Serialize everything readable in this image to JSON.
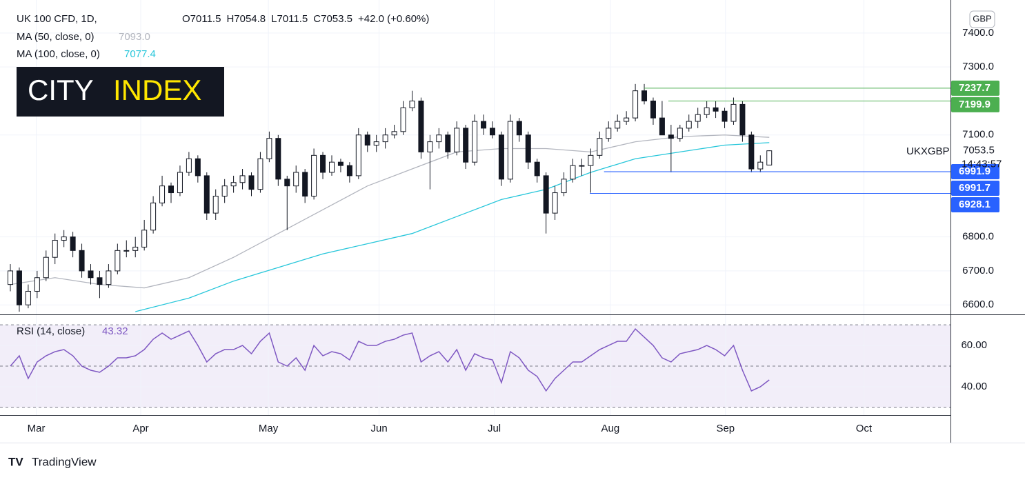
{
  "chart_data": {
    "type": "candlestick",
    "symbol": "UK 100 CFD, 1D,",
    "ohlc_labels": [
      "O7011.5",
      "H7054.8",
      "L7011.5",
      "C7053.5",
      "+42.0 (+0.60%)"
    ],
    "logo": [
      "CITY",
      "INDEX"
    ],
    "currency": "GBP",
    "ticker": "UKXGBP",
    "last_price": {
      "value": 7053.5,
      "label": "7053.5"
    },
    "countdown": "14:43:57",
    "brand": "TradingView",
    "xlim": [
      -1.16,
      105.3
    ],
    "xticks": [
      {
        "value": 2.9,
        "label": "Mar"
      },
      {
        "value": 14.6,
        "label": "Apr"
      },
      {
        "value": 28.9,
        "label": "May"
      },
      {
        "value": 41.3,
        "label": "Jun"
      },
      {
        "value": 54.2,
        "label": "Jul"
      },
      {
        "value": 67.2,
        "label": "Aug"
      },
      {
        "value": 80.1,
        "label": "Sep"
      },
      {
        "value": 95.6,
        "label": "Oct"
      }
    ],
    "ylim": [
      6572,
      7487
    ],
    "yticks": [
      {
        "value": 6600,
        "label": "6600.0"
      },
      {
        "value": 6700,
        "label": "6700.0"
      },
      {
        "value": 6800,
        "label": "6800.0"
      },
      {
        "value": 7100,
        "label": "7100.0"
      },
      {
        "value": 7300,
        "label": "7300.0"
      },
      {
        "value": 7400,
        "label": "7400.0"
      }
    ],
    "grid": true,
    "up_color": "#ffffff",
    "down_color": "#131722",
    "series": [
      {
        "name": "UK 100 CFD",
        "values": [
          [
            6660,
            6720,
            6640,
            6700
          ],
          [
            6700,
            6710,
            6580,
            6600
          ],
          [
            6600,
            6660,
            6590,
            6640
          ],
          [
            6640,
            6700,
            6620,
            6680
          ],
          [
            6680,
            6760,
            6670,
            6740
          ],
          [
            6740,
            6810,
            6720,
            6790
          ],
          [
            6790,
            6820,
            6770,
            6800
          ],
          [
            6800,
            6815,
            6740,
            6760
          ],
          [
            6760,
            6780,
            6680,
            6700
          ],
          [
            6700,
            6720,
            6660,
            6680
          ],
          [
            6680,
            6700,
            6620,
            6660
          ],
          [
            6660,
            6720,
            6650,
            6700
          ],
          [
            6700,
            6780,
            6690,
            6760
          ],
          [
            6760,
            6790,
            6740,
            6760
          ],
          [
            6760,
            6800,
            6740,
            6770
          ],
          [
            6770,
            6850,
            6760,
            6820
          ],
          [
            6820,
            6920,
            6810,
            6900
          ],
          [
            6900,
            6980,
            6890,
            6950
          ],
          [
            6950,
            6960,
            6900,
            6930
          ],
          [
            6930,
            7010,
            6920,
            6990
          ],
          [
            6990,
            7050,
            6980,
            7030
          ],
          [
            7030,
            7040,
            6960,
            6980
          ],
          [
            6980,
            6990,
            6850,
            6870
          ],
          [
            6870,
            6940,
            6850,
            6920
          ],
          [
            6920,
            6970,
            6900,
            6950
          ],
          [
            6950,
            6980,
            6930,
            6960
          ],
          [
            6960,
            7000,
            6940,
            6980
          ],
          [
            6980,
            6990,
            6920,
            6940
          ],
          [
            6940,
            7050,
            6930,
            7030
          ],
          [
            7030,
            7110,
            7020,
            7090
          ],
          [
            7090,
            7100,
            6950,
            6970
          ],
          [
            6970,
            6980,
            6820,
            6950
          ],
          [
            6950,
            7010,
            6930,
            6990
          ],
          [
            6990,
            7000,
            6900,
            6920
          ],
          [
            6920,
            7060,
            6910,
            7040
          ],
          [
            7040,
            7050,
            6970,
            6990
          ],
          [
            6990,
            7040,
            6980,
            7020
          ],
          [
            7020,
            7030,
            6990,
            7010
          ],
          [
            7010,
            7020,
            6960,
            6980
          ],
          [
            6980,
            7120,
            6970,
            7100
          ],
          [
            7100,
            7110,
            7050,
            7070
          ],
          [
            7070,
            7100,
            7050,
            7080
          ],
          [
            7080,
            7120,
            7060,
            7100
          ],
          [
            7100,
            7130,
            7090,
            7110
          ],
          [
            7110,
            7200,
            7100,
            7180
          ],
          [
            7180,
            7230,
            7170,
            7200
          ],
          [
            7200,
            7210,
            7030,
            7050
          ],
          [
            7050,
            7100,
            6940,
            7080
          ],
          [
            7080,
            7120,
            7060,
            7100
          ],
          [
            7100,
            7110,
            7030,
            7050
          ],
          [
            7050,
            7140,
            7040,
            7120
          ],
          [
            7120,
            7130,
            7000,
            7020
          ],
          [
            7020,
            7160,
            7010,
            7140
          ],
          [
            7140,
            7160,
            7100,
            7120
          ],
          [
            7120,
            7140,
            7090,
            7100
          ],
          [
            7100,
            7110,
            6950,
            6970
          ],
          [
            6970,
            7160,
            6960,
            7140
          ],
          [
            7140,
            7150,
            7080,
            7100
          ],
          [
            7100,
            7110,
            7000,
            7020
          ],
          [
            7020,
            7030,
            6960,
            6980
          ],
          [
            6980,
            6990,
            6810,
            6870
          ],
          [
            6870,
            6950,
            6850,
            6930
          ],
          [
            6930,
            6990,
            6920,
            6970
          ],
          [
            6970,
            7030,
            6960,
            7010
          ],
          [
            7010,
            7030,
            6980,
            7010
          ],
          [
            7010,
            7060,
            6930,
            7040
          ],
          [
            7040,
            7110,
            7030,
            7090
          ],
          [
            7090,
            7140,
            7080,
            7120
          ],
          [
            7120,
            7160,
            7110,
            7140
          ],
          [
            7140,
            7170,
            7130,
            7150
          ],
          [
            7150,
            7250,
            7140,
            7230
          ],
          [
            7230,
            7250,
            7190,
            7200
          ],
          [
            7200,
            7210,
            7130,
            7150
          ],
          [
            7150,
            7200,
            7100,
            7100
          ],
          [
            7100,
            7130,
            6990,
            7090
          ],
          [
            7090,
            7130,
            7080,
            7120
          ],
          [
            7120,
            7160,
            7110,
            7140
          ],
          [
            7140,
            7180,
            7120,
            7160
          ],
          [
            7160,
            7200,
            7150,
            7180
          ],
          [
            7180,
            7200,
            7150,
            7170
          ],
          [
            7170,
            7180,
            7120,
            7140
          ],
          [
            7140,
            7210,
            7130,
            7190
          ],
          [
            7190,
            7200,
            7080,
            7100
          ],
          [
            7100,
            7110,
            6990,
            7000
          ],
          [
            7000,
            7040,
            6990,
            7020
          ],
          [
            7011.5,
            7054.8,
            7011.5,
            7053.5
          ]
        ]
      }
    ],
    "moving_averages": [
      {
        "name": "MA (50, close, 0)",
        "last_label": "7093.0",
        "color": "#b2b5be",
        "x": [
          0,
          5,
          10,
          15,
          20,
          25,
          30,
          35,
          40,
          45,
          50,
          55,
          60,
          65,
          70,
          75,
          80,
          85
        ],
        "values": [
          6660,
          6680,
          6660,
          6650,
          6680,
          6740,
          6810,
          6880,
          6950,
          7000,
          7050,
          7060,
          7060,
          7050,
          7080,
          7095,
          7100,
          7093
        ]
      },
      {
        "name": "MA (100, close, 0)",
        "last_label": "7077.4",
        "color": "#26c6da",
        "x": [
          14,
          20,
          25,
          30,
          35,
          40,
          45,
          50,
          55,
          60,
          65,
          70,
          75,
          80,
          85
        ],
        "values": [
          6580,
          6620,
          6670,
          6710,
          6750,
          6780,
          6810,
          6860,
          6910,
          6940,
          6990,
          7030,
          7050,
          7070,
          7077.4
        ]
      }
    ],
    "levels": [
      {
        "value": 7237.7,
        "label": "7237.7",
        "color": "#4caf50",
        "x": 71
      },
      {
        "value": 7199.9,
        "label": "7199.9",
        "color": "#4caf50",
        "x": 73.7
      },
      {
        "value": 6991.9,
        "label": "6991.9",
        "color": "#2962ff",
        "x": 66.5
      },
      {
        "value": 6991.7,
        "label": "6991.7",
        "color": "#2962ff",
        "x": 66.5
      },
      {
        "value": 6928.1,
        "label": "6928.1",
        "color": "#2962ff",
        "x": 64.9
      }
    ],
    "rsi": {
      "name": "RSI (14, close)",
      "last_label": "43.32",
      "color": "#7e57c2",
      "ylim": [
        26.3,
        74.7
      ],
      "band": [
        30,
        70
      ],
      "mid": 50,
      "yticks": [
        {
          "value": 40,
          "label": "40.00"
        },
        {
          "value": 60,
          "label": "60.00"
        }
      ],
      "values": [
        50,
        55,
        44,
        52,
        55,
        57,
        58,
        55,
        50,
        48,
        47,
        50,
        54,
        54,
        55,
        58,
        63,
        66,
        63,
        65,
        67,
        60,
        52,
        56,
        58,
        58,
        60,
        56,
        62,
        66,
        52,
        50,
        54,
        48,
        60,
        55,
        57,
        56,
        53,
        62,
        60,
        60,
        62,
        63,
        65,
        66,
        52,
        55,
        57,
        52,
        58,
        48,
        56,
        54,
        53,
        42,
        57,
        54,
        48,
        45,
        38,
        44,
        48,
        52,
        52,
        55,
        58,
        60,
        62,
        62,
        68,
        64,
        60,
        54,
        52,
        56,
        57,
        58,
        60,
        58,
        55,
        60,
        48,
        38,
        40,
        43.32
      ]
    }
  }
}
